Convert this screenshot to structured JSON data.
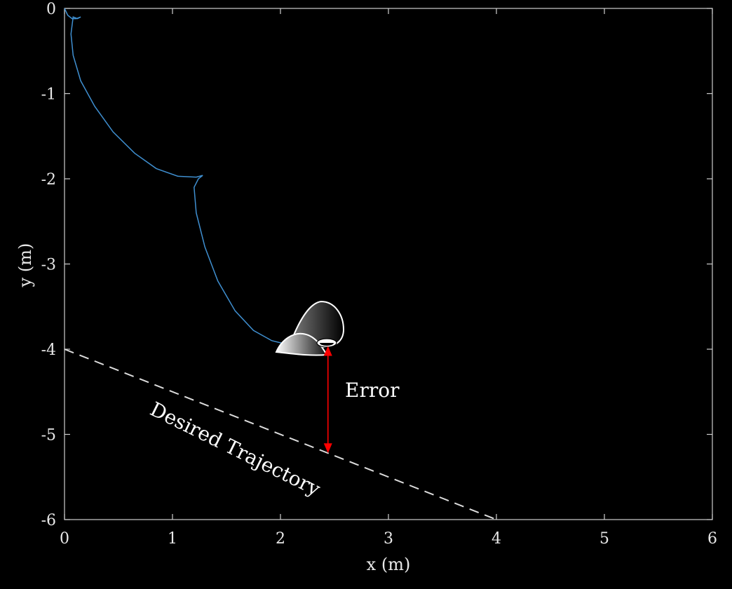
{
  "chart_data": {
    "type": "line",
    "xlabel": "x (m)",
    "ylabel": "y (m)",
    "xlim": [
      0,
      6
    ],
    "ylim": [
      -6,
      0
    ],
    "x_ticks": [
      "0",
      "1",
      "2",
      "3",
      "4",
      "5",
      "6"
    ],
    "y_ticks": [
      "0",
      "-1",
      "-2",
      "-3",
      "-4",
      "-5",
      "-6"
    ],
    "grid": false,
    "colors": {
      "background": "#000000",
      "axes": "#cfcfcf",
      "path": "#3f8fd0",
      "desired": "#dcdcdc",
      "error": "#ff0000"
    },
    "series": [
      {
        "role": "robot-path",
        "x": [
          0.0,
          0.03,
          0.07,
          0.11,
          0.15,
          0.12,
          0.08,
          0.06,
          0.08,
          0.15,
          0.28,
          0.45,
          0.65,
          0.85,
          1.05,
          1.22,
          1.28,
          1.24,
          1.2,
          1.22,
          1.3,
          1.42,
          1.58,
          1.75,
          1.92,
          2.05,
          2.15,
          2.25,
          2.35,
          2.44
        ],
        "y": [
          0.0,
          -0.08,
          -0.12,
          -0.12,
          -0.1,
          -0.12,
          -0.1,
          -0.3,
          -0.55,
          -0.85,
          -1.15,
          -1.45,
          -1.7,
          -1.88,
          -1.97,
          -1.98,
          -1.96,
          -2.0,
          -2.1,
          -2.4,
          -2.8,
          -3.2,
          -3.55,
          -3.78,
          -3.9,
          -3.94,
          -3.93,
          -3.93,
          -3.93,
          -3.93
        ]
      },
      {
        "role": "desired-trajectory",
        "x": [
          0,
          4
        ],
        "y": [
          -4,
          -6
        ]
      }
    ],
    "annotations": {
      "error_label": "Error",
      "desired_label": "Desired Trajectory",
      "error_arrow": {
        "x": 2.44,
        "y_from": -3.93,
        "y_to": -5.22
      }
    },
    "robot_marker": {
      "x": 2.44,
      "y": -3.93
    }
  }
}
